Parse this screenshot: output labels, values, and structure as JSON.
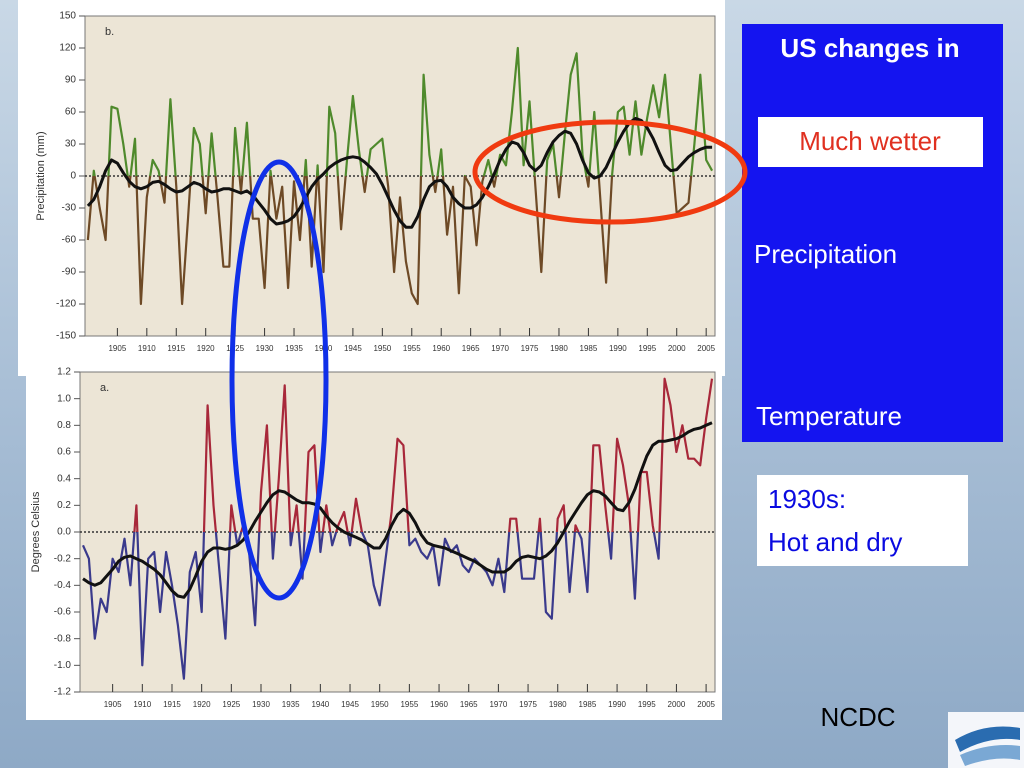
{
  "chart_data": [
    {
      "type": "line",
      "label": "b.",
      "ylabel": "Precipitation (mm)",
      "x": [
        1900,
        1901,
        1902,
        1903,
        1904,
        1905,
        1906,
        1907,
        1908,
        1909,
        1910,
        1911,
        1912,
        1913,
        1914,
        1915,
        1916,
        1917,
        1918,
        1919,
        1920,
        1921,
        1922,
        1923,
        1924,
        1925,
        1926,
        1927,
        1928,
        1929,
        1930,
        1931,
        1932,
        1933,
        1934,
        1935,
        1936,
        1937,
        1938,
        1939,
        1940,
        1941,
        1942,
        1943,
        1944,
        1945,
        1946,
        1947,
        1948,
        1949,
        1950,
        1951,
        1952,
        1953,
        1954,
        1955,
        1956,
        1957,
        1958,
        1959,
        1960,
        1961,
        1962,
        1963,
        1964,
        1965,
        1966,
        1967,
        1968,
        1969,
        1970,
        1971,
        1972,
        1973,
        1974,
        1975,
        1976,
        1977,
        1978,
        1979,
        1980,
        1981,
        1982,
        1983,
        1984,
        1985,
        1986,
        1987,
        1988,
        1989,
        1990,
        1991,
        1992,
        1993,
        1994,
        1995,
        1996,
        1997,
        1998,
        1999,
        2000,
        2001,
        2002,
        2003,
        2004,
        2005,
        2006
      ],
      "series": [
        {
          "color": "#4f8a2c",
          "negative_color": "#6e4a26",
          "values": [
            -60,
            5,
            -30,
            -60,
            65,
            63,
            30,
            -10,
            35,
            -120,
            -20,
            15,
            5,
            -25,
            72,
            -10,
            -120,
            -40,
            45,
            30,
            -35,
            40,
            -20,
            -85,
            -85,
            45,
            -15,
            50,
            -40,
            -40,
            -105,
            5,
            -40,
            -10,
            -105,
            -5,
            -60,
            15,
            -85,
            10,
            -90,
            65,
            40,
            -50,
            15,
            75,
            25,
            -15,
            25,
            30,
            35,
            -10,
            -90,
            -20,
            -80,
            -110,
            -120,
            95,
            20,
            -15,
            25,
            -55,
            -10,
            -110,
            0,
            -10,
            -65,
            -5,
            15,
            -10,
            20,
            10,
            60,
            120,
            10,
            70,
            -10,
            -90,
            15,
            30,
            -20,
            40,
            95,
            115,
            20,
            -10,
            60,
            -20,
            -100,
            0,
            60,
            65,
            20,
            70,
            20,
            55,
            85,
            55,
            95,
            30,
            -35,
            -30,
            -25,
            30,
            95,
            15,
            5
          ]
        },
        {
          "color": "#111111",
          "values": [
            -28,
            -22,
            -10,
            5,
            15,
            12,
            3,
            -5,
            -10,
            -12,
            -10,
            -6,
            -5,
            -8,
            -12,
            -15,
            -14,
            -10,
            -6,
            -8,
            -12,
            -15,
            -14,
            -12,
            -12,
            -14,
            -16,
            -14,
            -18,
            -25,
            -32,
            -40,
            -45,
            -44,
            -42,
            -38,
            -30,
            -20,
            -10,
            -3,
            2,
            8,
            12,
            15,
            17,
            18,
            17,
            13,
            8,
            2,
            -8,
            -20,
            -32,
            -42,
            -48,
            -48,
            -38,
            -22,
            -10,
            -5,
            -4,
            -10,
            -20,
            -26,
            -30,
            -30,
            -27,
            -20,
            -10,
            2,
            15,
            25,
            32,
            30,
            22,
            10,
            5,
            10,
            22,
            32,
            38,
            42,
            40,
            30,
            15,
            3,
            -2,
            0,
            8,
            20,
            32,
            42,
            50,
            54,
            52,
            45,
            35,
            22,
            10,
            5,
            6,
            12,
            18,
            22,
            25,
            27,
            27
          ]
        }
      ],
      "xlim": [
        1899.5,
        2006.5
      ],
      "xticks": [
        1905,
        1910,
        1915,
        1920,
        1925,
        1930,
        1935,
        1940,
        1945,
        1950,
        1955,
        1960,
        1965,
        1970,
        1975,
        1980,
        1985,
        1990,
        1995,
        2000,
        2005
      ],
      "ylim": [
        -150,
        150
      ],
      "yticks": [
        150,
        120,
        90,
        60,
        30,
        0,
        -30,
        -60,
        -90,
        -120,
        -150
      ]
    },
    {
      "type": "line",
      "label": "a.",
      "ylabel": "Degrees Celsius",
      "x": [
        1900,
        1901,
        1902,
        1903,
        1904,
        1905,
        1906,
        1907,
        1908,
        1909,
        1910,
        1911,
        1912,
        1913,
        1914,
        1915,
        1916,
        1917,
        1918,
        1919,
        1920,
        1921,
        1922,
        1923,
        1924,
        1925,
        1926,
        1927,
        1928,
        1929,
        1930,
        1931,
        1932,
        1933,
        1934,
        1935,
        1936,
        1937,
        1938,
        1939,
        1940,
        1941,
        1942,
        1943,
        1944,
        1945,
        1946,
        1947,
        1948,
        1949,
        1950,
        1951,
        1952,
        1953,
        1954,
        1955,
        1956,
        1957,
        1958,
        1959,
        1960,
        1961,
        1962,
        1963,
        1964,
        1965,
        1966,
        1967,
        1968,
        1969,
        1970,
        1971,
        1972,
        1973,
        1974,
        1975,
        1976,
        1977,
        1978,
        1979,
        1980,
        1981,
        1982,
        1983,
        1984,
        1985,
        1986,
        1987,
        1988,
        1989,
        1990,
        1991,
        1992,
        1993,
        1994,
        1995,
        1996,
        1997,
        1998,
        1999,
        2000,
        2001,
        2002,
        2003,
        2004,
        2005,
        2006
      ],
      "series": [
        {
          "color": "#a8283a",
          "negative_color": "#3a3a8c",
          "values": [
            -0.1,
            -0.2,
            -0.8,
            -0.5,
            -0.6,
            -0.2,
            -0.3,
            -0.05,
            -0.4,
            0.2,
            -1.0,
            -0.2,
            -0.15,
            -0.6,
            -0.15,
            -0.4,
            -0.7,
            -1.1,
            -0.3,
            -0.15,
            -0.6,
            0.95,
            0.2,
            -0.3,
            -0.8,
            0.2,
            -0.1,
            0.05,
            -0.15,
            -0.7,
            0.3,
            0.8,
            -0.2,
            0.4,
            1.1,
            -0.1,
            0.2,
            -0.35,
            0.6,
            0.65,
            -0.15,
            0.2,
            -0.1,
            0.05,
            0.15,
            -0.1,
            0.25,
            0,
            -0.1,
            -0.4,
            -0.55,
            -0.2,
            0.15,
            0.7,
            0.65,
            -0.1,
            -0.05,
            -0.15,
            -0.2,
            -0.1,
            -0.4,
            -0.05,
            -0.15,
            -0.1,
            -0.25,
            -0.3,
            -0.2,
            -0.25,
            -0.3,
            -0.4,
            -0.2,
            -0.45,
            0.1,
            0.1,
            -0.35,
            -0.35,
            -0.35,
            0.1,
            -0.6,
            -0.65,
            0.1,
            0.2,
            -0.45,
            0.05,
            -0.05,
            -0.45,
            0.65,
            0.65,
            0.2,
            -0.2,
            0.7,
            0.5,
            0.2,
            -0.5,
            0.45,
            0.45,
            0.05,
            -0.2,
            1.15,
            0.95,
            0.6,
            0.8,
            0.55,
            0.55,
            0.5,
            0.85,
            1.15
          ]
        },
        {
          "color": "#111111",
          "values": [
            -0.35,
            -0.38,
            -0.4,
            -0.38,
            -0.33,
            -0.28,
            -0.22,
            -0.19,
            -0.18,
            -0.2,
            -0.22,
            -0.25,
            -0.28,
            -0.32,
            -0.38,
            -0.44,
            -0.48,
            -0.49,
            -0.43,
            -0.33,
            -0.22,
            -0.15,
            -0.12,
            -0.12,
            -0.13,
            -0.12,
            -0.1,
            -0.06,
            0.0,
            0.08,
            0.15,
            0.22,
            0.28,
            0.31,
            0.3,
            0.27,
            0.24,
            0.22,
            0.22,
            0.21,
            0.18,
            0.12,
            0.07,
            0.03,
            0.0,
            -0.02,
            -0.04,
            -0.06,
            -0.09,
            -0.12,
            -0.12,
            -0.05,
            0.05,
            0.13,
            0.17,
            0.14,
            0.07,
            -0.02,
            -0.08,
            -0.1,
            -0.11,
            -0.12,
            -0.14,
            -0.16,
            -0.18,
            -0.2,
            -0.22,
            -0.25,
            -0.28,
            -0.3,
            -0.3,
            -0.3,
            -0.27,
            -0.22,
            -0.19,
            -0.18,
            -0.19,
            -0.2,
            -0.18,
            -0.14,
            -0.08,
            0.0,
            0.08,
            0.15,
            0.22,
            0.28,
            0.31,
            0.3,
            0.27,
            0.22,
            0.17,
            0.16,
            0.22,
            0.32,
            0.45,
            0.57,
            0.65,
            0.68,
            0.68,
            0.69,
            0.7,
            0.72,
            0.75,
            0.77,
            0.78,
            0.8,
            0.82
          ]
        }
      ],
      "xlim": [
        1899.5,
        2006.5
      ],
      "xticks": [
        1905,
        1910,
        1915,
        1920,
        1925,
        1930,
        1935,
        1940,
        1945,
        1950,
        1955,
        1960,
        1965,
        1970,
        1975,
        1980,
        1985,
        1990,
        1995,
        2000,
        2005
      ],
      "ylim": [
        -1.2,
        1.2
      ],
      "yticks": [
        1.2,
        {
          "value": 1.0,
          "label": "1.0"
        },
        0.8,
        0.6,
        0.4,
        0.2,
        {
          "value": 0,
          "label": "0.0"
        },
        -0.2,
        -0.4,
        -0.6,
        -0.8,
        {
          "value": -1.0,
          "label": "-1.0"
        },
        -1.2
      ]
    }
  ],
  "panel": {
    "title": "US changes in",
    "highlight": "Much wetter",
    "items": [
      "Precipitation",
      "Temperature"
    ]
  },
  "callout": [
    "1930s:",
    "Hot and dry"
  ],
  "source": "NCDC"
}
